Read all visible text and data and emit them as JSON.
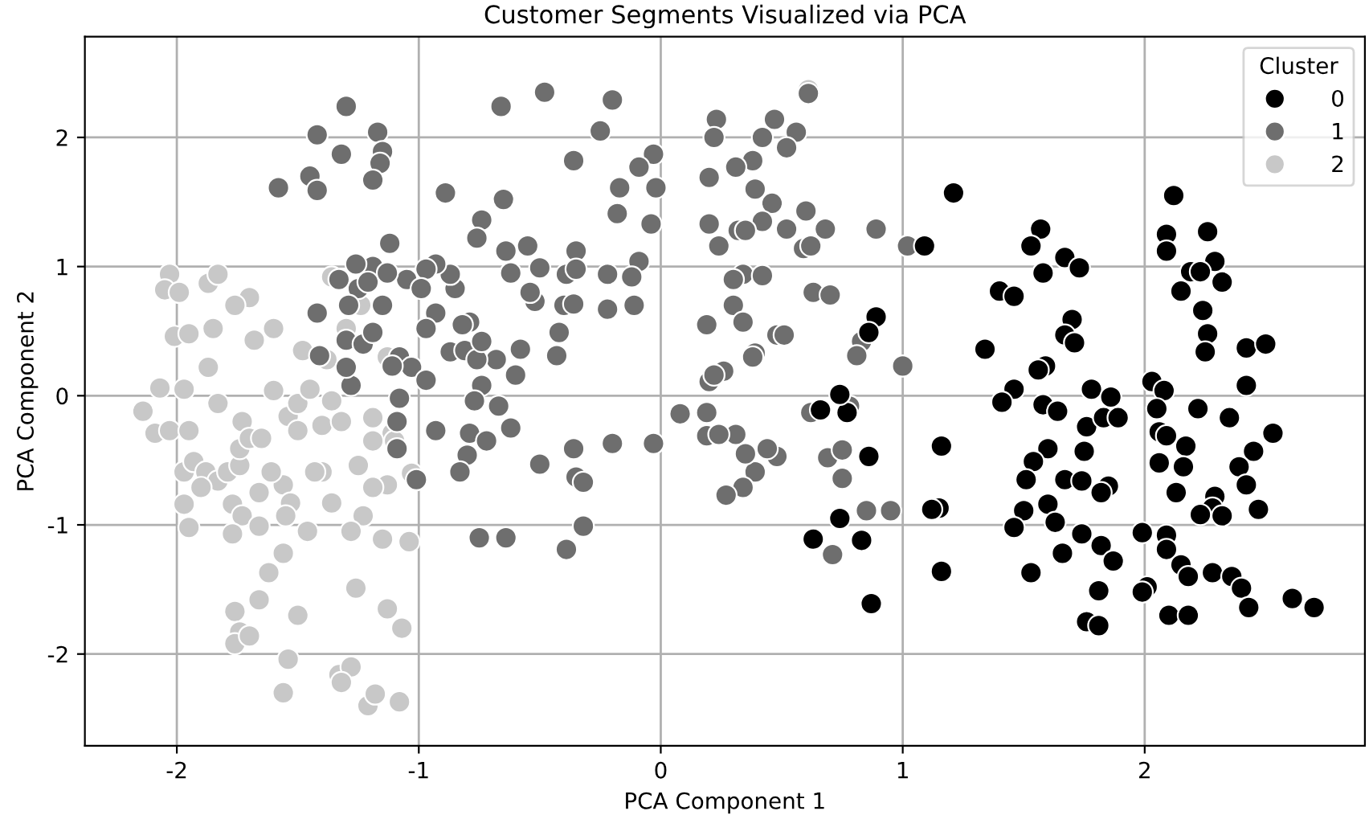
{
  "chart_data": {
    "type": "scatter",
    "title": "Customer Segments Visualized via PCA",
    "xlabel": "PCA Component 1",
    "ylabel": "PCA Component 2",
    "legend_title": "Cluster",
    "legend": "top right",
    "grid": true,
    "marker": "circle",
    "xlim": [
      -2.38,
      2.91
    ],
    "ylim": [
      -2.71,
      2.78
    ],
    "xticks": [
      -2,
      -1,
      0,
      1,
      2
    ],
    "yticks": [
      -2,
      -1,
      0,
      1,
      2
    ],
    "series": [
      {
        "name": "0",
        "color": "#000000",
        "x": [
          1.21,
          1.09,
          0.89,
          0.86,
          1.57,
          1.53,
          1.67,
          1.73,
          1.58,
          1.4,
          1.46,
          1.7,
          1.67,
          1.71,
          1.34,
          1.59,
          1.56,
          1.46,
          1.78,
          2.12,
          2.09,
          2.26,
          2.09,
          2.29,
          2.19,
          2.23,
          2.32,
          2.15,
          2.24,
          2.26,
          2.25,
          2.42,
          2.5,
          2.42,
          2.03,
          2.08,
          1.41,
          1.58,
          1.64,
          1.76,
          1.83,
          1.89,
          1.86,
          2.05,
          2.22,
          2.35,
          2.53,
          2.06,
          2.09,
          2.17,
          2.45,
          2.39,
          2.42,
          2.47,
          2.29,
          2.28,
          2.32,
          2.23,
          2.13,
          2.16,
          2.06,
          1.6,
          1.75,
          1.54,
          1.51,
          1.67,
          1.74,
          1.85,
          1.82,
          1.5,
          1.6,
          1.63,
          1.46,
          1.74,
          1.82,
          1.87,
          1.66,
          1.99,
          2.09,
          2.09,
          2.15,
          2.18,
          2.28,
          2.36,
          2.4,
          2.43,
          2.61,
          2.7,
          1.53,
          1.81,
          2.01,
          1.99,
          1.76,
          1.81,
          2.1,
          2.18,
          1.16,
          1.15,
          1.16,
          0.66,
          0.77,
          0.74,
          0.86,
          0.74,
          0.63,
          0.83,
          0.87,
          1.12
        ],
        "values": [
          1.57,
          1.16,
          0.61,
          0.49,
          1.29,
          1.16,
          1.07,
          0.99,
          0.95,
          0.81,
          0.77,
          0.59,
          0.47,
          0.41,
          0.36,
          0.23,
          0.2,
          0.05,
          0.05,
          1.55,
          1.25,
          1.27,
          1.12,
          1.04,
          0.96,
          0.96,
          0.88,
          0.81,
          0.66,
          0.48,
          0.34,
          0.37,
          0.4,
          0.08,
          0.11,
          0.04,
          -0.05,
          -0.07,
          -0.12,
          -0.24,
          -0.17,
          -0.17,
          -0.01,
          -0.1,
          -0.1,
          -0.17,
          -0.29,
          -0.28,
          -0.31,
          -0.39,
          -0.43,
          -0.55,
          -0.69,
          -0.88,
          -0.78,
          -0.87,
          -0.93,
          -0.92,
          -0.75,
          -0.55,
          -0.52,
          -0.41,
          -0.43,
          -0.51,
          -0.65,
          -0.65,
          -0.66,
          -0.7,
          -0.75,
          -0.89,
          -0.84,
          -0.98,
          -1.02,
          -1.07,
          -1.16,
          -1.28,
          -1.22,
          -1.06,
          -1.08,
          -1.19,
          -1.31,
          -1.4,
          -1.37,
          -1.4,
          -1.49,
          -1.64,
          -1.57,
          -1.64,
          -1.37,
          -1.51,
          -1.48,
          -1.52,
          -1.75,
          -1.78,
          -1.7,
          -1.7,
          -0.39,
          -0.87,
          -1.36,
          -0.11,
          -0.13,
          0.01,
          -0.47,
          -0.95,
          -1.11,
          -1.12,
          -1.61,
          -0.88
        ]
      },
      {
        "name": "1",
        "color": "#6e6e6e",
        "x": [
          -1.3,
          -1.42,
          -1.32,
          -1.17,
          -1.15,
          -1.16,
          -1.19,
          -1.58,
          -1.45,
          -1.42,
          -0.89,
          -0.66,
          -0.48,
          -0.2,
          -0.25,
          -0.03,
          -0.36,
          -0.02,
          -0.09,
          -0.17,
          -0.18,
          -0.04,
          -0.09,
          -0.12,
          -0.35,
          -0.39,
          -0.35,
          -0.22,
          -0.52,
          -0.4,
          -0.36,
          -0.22,
          -0.11,
          -0.64,
          -0.62,
          -0.54,
          -0.74,
          -0.76,
          -0.65,
          -0.55,
          -0.5,
          -0.42,
          -0.43,
          -0.58,
          -0.6,
          -0.68,
          -0.74,
          -0.79,
          -0.82,
          -0.93,
          -0.85,
          -0.87,
          -0.93,
          -0.97,
          -1.05,
          -0.99,
          -1.12,
          -1.19,
          -1.26,
          -1.33,
          -1.25,
          -1.13,
          -1.15,
          -1.21,
          -1.29,
          -1.42,
          -1.41,
          -1.3,
          -1.23,
          -1.19,
          -1.08,
          -1.03,
          -0.97,
          -0.87,
          -0.81,
          -0.76,
          -0.74,
          -0.97,
          -1.11,
          -1.28,
          -1.3,
          -1.08,
          -1.09,
          -1.09,
          -1.01,
          -0.93,
          -0.79,
          -0.8,
          -0.83,
          -0.72,
          -0.77,
          -0.67,
          -0.62,
          -0.75,
          -0.64,
          -0.5,
          -0.36,
          -0.35,
          -0.32,
          -0.32,
          -0.39,
          -0.2,
          -0.03,
          0.08,
          0.19,
          0.19,
          0.31,
          0.39,
          0.35,
          0.34,
          0.27,
          0.48,
          0.44,
          0.24,
          0.62,
          0.69,
          0.75,
          0.71,
          0.75,
          0.85,
          0.95,
          0.56,
          0.61,
          0.47,
          0.42,
          0.52,
          0.38,
          0.31,
          0.23,
          0.22,
          0.2,
          0.39,
          0.46,
          0.42,
          0.6,
          0.52,
          0.68,
          0.89,
          0.2,
          0.32,
          0.35,
          0.24,
          0.59,
          0.62,
          0.34,
          0.42,
          0.3,
          0.63,
          0.7,
          0.3,
          0.19,
          0.34,
          0.48,
          0.51,
          0.39,
          0.26,
          0.38,
          0.2,
          0.22,
          0.83,
          0.81,
          1.0,
          1.02,
          0.78
        ],
        "values": [
          2.24,
          2.02,
          1.87,
          2.04,
          1.89,
          1.8,
          1.67,
          1.61,
          1.7,
          1.59,
          1.57,
          2.24,
          2.35,
          2.29,
          2.05,
          1.87,
          1.82,
          1.61,
          1.77,
          1.61,
          1.41,
          1.33,
          1.04,
          0.92,
          1.12,
          0.94,
          0.98,
          0.94,
          0.73,
          0.7,
          0.71,
          0.67,
          0.7,
          1.12,
          0.95,
          0.8,
          1.36,
          1.22,
          1.52,
          1.16,
          0.99,
          0.49,
          0.31,
          0.36,
          0.16,
          0.28,
          0.08,
          0.57,
          0.55,
          0.64,
          0.83,
          0.94,
          1.02,
          0.98,
          0.9,
          0.83,
          1.18,
          1.0,
          1.02,
          0.9,
          0.83,
          0.95,
          0.7,
          0.88,
          0.7,
          0.64,
          0.31,
          0.43,
          0.4,
          0.49,
          0.3,
          0.22,
          0.52,
          0.34,
          0.35,
          0.28,
          0.42,
          0.12,
          0.23,
          0.08,
          0.22,
          -0.02,
          -0.2,
          -0.41,
          -0.65,
          -0.27,
          -0.29,
          -0.46,
          -0.59,
          -0.35,
          -0.04,
          -0.08,
          -0.25,
          -1.1,
          -1.1,
          -0.53,
          -0.41,
          -0.63,
          -0.67,
          -1.01,
          -1.19,
          -0.37,
          -0.37,
          -0.14,
          -0.13,
          -0.31,
          -0.3,
          -0.59,
          -0.45,
          -0.71,
          -0.77,
          -0.47,
          -0.41,
          -0.3,
          -0.13,
          -0.48,
          -0.64,
          -1.23,
          -0.42,
          -0.89,
          -0.89,
          2.04,
          2.34,
          2.14,
          2.0,
          1.92,
          1.82,
          1.77,
          2.14,
          2.0,
          1.69,
          1.6,
          1.49,
          1.35,
          1.43,
          1.29,
          1.29,
          1.29,
          1.33,
          1.28,
          1.28,
          1.16,
          1.14,
          1.16,
          0.94,
          0.93,
          0.9,
          0.8,
          0.78,
          0.7,
          0.55,
          0.57,
          0.47,
          0.47,
          0.33,
          0.19,
          0.3,
          0.11,
          0.16,
          0.42,
          0.31,
          0.23,
          1.16,
          -0.08
        ]
      },
      {
        "name": "2",
        "color": "#c8c8c8",
        "x": [
          -2.14,
          -2.09,
          -2.03,
          -2.05,
          -1.99,
          -2.01,
          -1.95,
          -1.87,
          -1.83,
          -1.85,
          -1.7,
          -1.76,
          -1.6,
          -1.68,
          -1.87,
          -1.97,
          -2.07,
          -2.03,
          -1.95,
          -1.97,
          -1.93,
          -1.88,
          -1.83,
          -1.79,
          -1.74,
          -1.97,
          -1.95,
          -1.9,
          -1.77,
          -1.74,
          -1.73,
          -1.7,
          -1.83,
          -1.73,
          -1.66,
          -1.77,
          -1.65,
          -1.56,
          -1.6,
          -1.54,
          -1.5,
          -1.45,
          -1.5,
          -1.4,
          -1.4,
          -1.53,
          -1.55,
          -1.46,
          -1.56,
          -1.62,
          -1.76,
          -1.74,
          -1.76,
          -1.7,
          -1.66,
          -1.5,
          -1.54,
          -1.56,
          -1.33,
          -1.28,
          -1.32,
          -1.21,
          -1.08,
          -1.18,
          -1.26,
          -1.13,
          -1.07,
          -1.23,
          -1.28,
          -1.15,
          -1.04,
          -1.25,
          -1.36,
          -1.13,
          -1.11,
          -1.19,
          -1.32,
          -1.19,
          -1.36,
          -1.38,
          -1.3,
          -1.36,
          -1.13,
          -1.24,
          -1.1,
          -1.03,
          -1.19,
          -1.48,
          -1.43,
          -1.61,
          -1.66,
          0.61
        ],
        "values": [
          -0.12,
          -0.29,
          0.94,
          0.82,
          0.8,
          0.46,
          0.48,
          0.87,
          0.94,
          0.52,
          0.76,
          0.7,
          0.52,
          0.43,
          0.22,
          0.05,
          0.06,
          -0.27,
          -0.27,
          -0.59,
          -0.51,
          -0.59,
          -0.66,
          -0.59,
          -0.54,
          -0.84,
          -1.02,
          -0.71,
          -0.84,
          -0.41,
          -0.2,
          -0.33,
          -0.06,
          -0.93,
          -1.01,
          -1.07,
          -0.33,
          -0.69,
          0.04,
          -0.16,
          -0.06,
          0.05,
          -0.27,
          -0.23,
          -0.59,
          -0.83,
          -0.93,
          -1.05,
          -1.22,
          -1.37,
          -1.67,
          -1.83,
          -1.92,
          -1.86,
          -1.58,
          -1.7,
          -2.04,
          -2.3,
          -2.16,
          -2.1,
          -2.22,
          -2.4,
          -2.37,
          -2.31,
          -1.49,
          -1.65,
          -1.8,
          -0.93,
          -1.05,
          -1.11,
          -1.13,
          -0.54,
          -0.83,
          -0.69,
          -0.29,
          -0.71,
          -0.2,
          -0.17,
          -0.04,
          0.28,
          0.52,
          0.92,
          0.3,
          0.7,
          -0.35,
          -0.6,
          -0.35,
          0.35,
          -0.59,
          -0.59,
          -0.75,
          2.37
        ]
      }
    ]
  }
}
